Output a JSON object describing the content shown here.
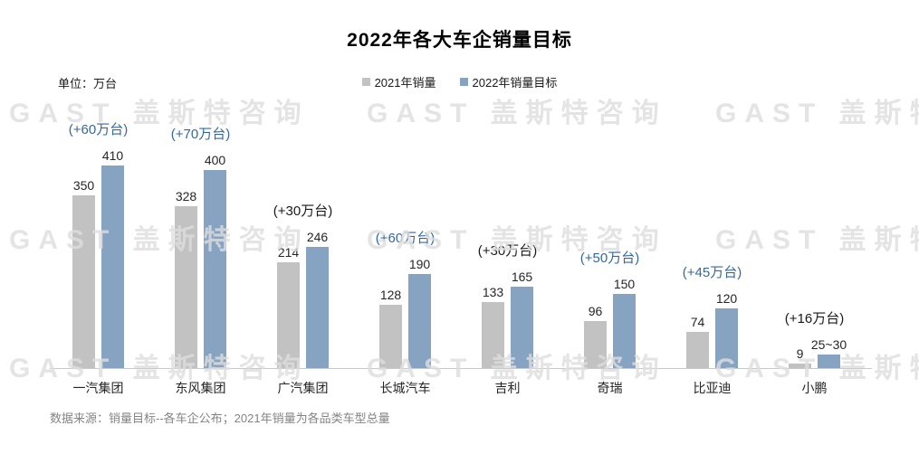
{
  "chart": {
    "title": "2022年各大车企销量目标",
    "unit_label": "单位：万台",
    "source": "数据来源：销量目标--各车企公布；2021年销量为各品类车型总量",
    "watermark_text": "GAST 盖斯特咨询",
    "legend": {
      "series1": "2021年销量",
      "series2": "2022年销量目标"
    },
    "colors": {
      "bar_2021": "#c2c2c2",
      "bar_2022": "#86a4c2",
      "annotation_blue": "#35689e",
      "annotation_black": "#1a1a1a",
      "axis_line": "#c9c9c9",
      "source_text": "#848484"
    }
  },
  "chart_data": {
    "type": "bar",
    "title": "2022年各大车企销量目标",
    "unit": "万台",
    "categories": [
      "一汽集团",
      "东风集团",
      "广汽集团",
      "长城汽车",
      "吉利",
      "奇瑞",
      "比亚迪",
      "小鹏"
    ],
    "series": [
      {
        "name": "2021年销量",
        "color": "#c2c2c2",
        "values": [
          350,
          328,
          214,
          128,
          133,
          96,
          74,
          9
        ],
        "labels": [
          "350",
          "328",
          "214",
          "128",
          "133",
          "96",
          "74",
          "9"
        ]
      },
      {
        "name": "2022年销量目标",
        "color": "#86a4c2",
        "values": [
          410,
          400,
          246,
          190,
          165,
          150,
          120,
          27.5
        ],
        "labels": [
          "410",
          "400",
          "246",
          "190",
          "165",
          "150",
          "120",
          "25~30"
        ]
      }
    ],
    "annotations": [
      {
        "text": "(+60万台)",
        "color": "#35689e"
      },
      {
        "text": "(+70万台)",
        "color": "#35689e"
      },
      {
        "text": "(+30万台)",
        "color": "#1a1a1a"
      },
      {
        "text": "(+60万台)",
        "color": "#35689e"
      },
      {
        "text": "(+30万台)",
        "color": "#1a1a1a"
      },
      {
        "text": "(+50万台)",
        "color": "#35689e"
      },
      {
        "text": "(+45万台)",
        "color": "#35689e"
      },
      {
        "text": "(+16万台)",
        "color": "#1a1a1a"
      }
    ],
    "ylim": [
      0,
      410
    ],
    "grid": false,
    "legend_position": "top-center",
    "axis_style": "baseline-only"
  }
}
